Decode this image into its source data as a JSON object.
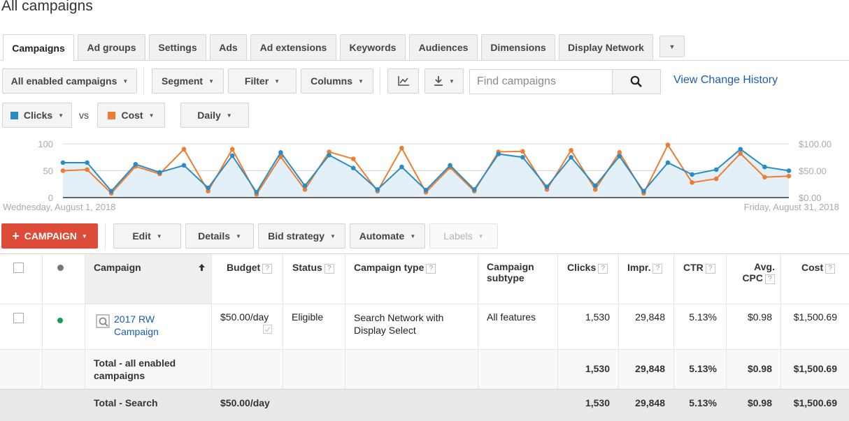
{
  "page": {
    "title": "All campaigns"
  },
  "tabs": [
    "Campaigns",
    "Ad groups",
    "Settings",
    "Ads",
    "Ad extensions",
    "Keywords",
    "Audiences",
    "Dimensions",
    "Display Network"
  ],
  "toolbar": {
    "campaign_filter": "All enabled campaigns",
    "segment": "Segment",
    "filter": "Filter",
    "columns": "Columns",
    "search_placeholder": "Find campaigns",
    "view_history": "View Change History"
  },
  "metrics": {
    "metric1": "Clicks",
    "vs": "vs",
    "metric2": "Cost",
    "granularity": "Daily"
  },
  "chart_data": {
    "type": "line",
    "left_axis_ticks": [
      "100",
      "50",
      "0"
    ],
    "right_axis_ticks": [
      "$100.00",
      "$50.00",
      "$0.00"
    ],
    "x_start_label": "Wednesday, August 1, 2018",
    "x_end_label": "Friday, August 31, 2018",
    "ylim_left": [
      0,
      100
    ],
    "ylim_right": [
      0,
      100
    ],
    "x": [
      1,
      2,
      3,
      4,
      5,
      6,
      7,
      8,
      9,
      10,
      11,
      12,
      13,
      14,
      15,
      16,
      17,
      18,
      19,
      20,
      21,
      22,
      23,
      24,
      25,
      26,
      27,
      28,
      29,
      30,
      31
    ],
    "series": [
      {
        "name": "Clicks",
        "color": "#2b8cc4",
        "values": [
          65,
          65,
          12,
          62,
          47,
          60,
          18,
          78,
          10,
          84,
          22,
          79,
          55,
          15,
          57,
          14,
          60,
          15,
          81,
          75,
          20,
          75,
          22,
          77,
          12,
          65,
          43,
          52,
          90,
          57,
          50
        ]
      },
      {
        "name": "Cost",
        "color": "#ed7d31",
        "values": [
          50,
          52,
          8,
          58,
          44,
          90,
          12,
          90,
          6,
          76,
          15,
          85,
          72,
          12,
          92,
          10,
          56,
          12,
          85,
          86,
          15,
          88,
          15,
          84,
          8,
          98,
          28,
          35,
          82,
          38,
          40
        ]
      }
    ],
    "grid": true
  },
  "actions": {
    "campaign": "CAMPAIGN",
    "edit": "Edit",
    "details": "Details",
    "bid_strategy": "Bid strategy",
    "automate": "Automate",
    "labels": "Labels"
  },
  "table": {
    "headers": {
      "campaign": "Campaign",
      "budget": "Budget",
      "status": "Status",
      "type": "Campaign type",
      "subtype": "Campaign subtype",
      "clicks": "Clicks",
      "impr": "Impr.",
      "ctr": "CTR",
      "cpc": "Avg. CPC",
      "cost": "Cost"
    },
    "help_glyph": "?",
    "row": {
      "name": "2017 RW Campaign",
      "budget": "$50.00/day",
      "status": "Eligible",
      "type": "Search Network with Display Select",
      "subtype": "All features",
      "clicks": "1,530",
      "impr": "29,848",
      "ctr": "5.13%",
      "cpc": "$0.98",
      "cost": "$1,500.69"
    },
    "total_enabled": {
      "label": "Total - all enabled campaigns",
      "clicks": "1,530",
      "impr": "29,848",
      "ctr": "5.13%",
      "cpc": "$0.98",
      "cost": "$1,500.69"
    },
    "total_search": {
      "label": "Total - Search",
      "budget": "$50.00/day",
      "clicks": "1,530",
      "impr": "29,848",
      "ctr": "5.13%",
      "cpc": "$0.98",
      "cost": "$1,500.69"
    }
  },
  "colors": {
    "clicks": "#2b8cc4",
    "cost": "#ed7d31",
    "primary": "#dd4b39",
    "link": "#1a5bb5",
    "status_enabled": "#0f9d58"
  }
}
